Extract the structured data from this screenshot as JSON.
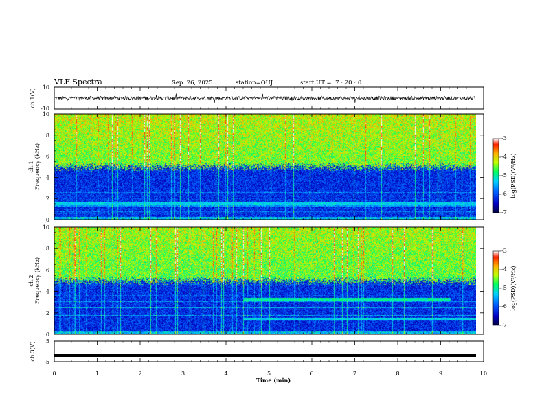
{
  "header": {
    "title": "VLF Spectra",
    "date": "Sep. 26, 2025",
    "station": "station=OUJ",
    "start": "start UT =  7 : 20 : 0"
  },
  "chart_data": [
    {
      "type": "line",
      "panel": "ch1-waveform",
      "xlabel": "",
      "ylabel": "ch.1(V)",
      "xlim": [
        0,
        9.8
      ],
      "ylim": [
        -10,
        10
      ],
      "y_ticks": [
        {
          "value": 10,
          "label": "10"
        },
        {
          "value": -10,
          "label": "-10"
        }
      ],
      "trace_color": "#000000",
      "description_level": "noisy signal around 0 V, amplitude roughly ±3 V with spikes"
    },
    {
      "type": "heatmap",
      "panel": "ch1-spectrogram",
      "ylabel": "ch.1\nFrequency (kHz)",
      "ylabel_lines": [
        "ch.1",
        "Frequency (kHz)"
      ],
      "xlim": [
        0,
        9.8
      ],
      "ylim": [
        0,
        10
      ],
      "y_ticks": [
        0,
        2,
        4,
        6,
        8,
        10
      ],
      "colorbar": {
        "label": "log(PSD)(V²/Hz)",
        "range": [
          -7,
          -3
        ],
        "ticks": [
          -3,
          -4,
          -5,
          -6,
          -7
        ]
      },
      "features": [
        {
          "description": "broadband noise above ~5 kHz",
          "freq_range": [
            5,
            10
          ],
          "log_psd": -4.5
        },
        {
          "description": "quiet band",
          "freq_range": [
            0.3,
            5
          ],
          "log_psd": -6.2
        },
        {
          "description": "narrow band line",
          "freq_range": [
            1.4,
            1.7
          ],
          "log_psd": -5.3
        }
      ]
    },
    {
      "type": "heatmap",
      "panel": "ch2-spectrogram",
      "ylabel": "ch.2\nFrequency (kHz)",
      "ylabel_lines": [
        "ch.2",
        "Frequency (kHz)"
      ],
      "xlim": [
        0,
        9.8
      ],
      "ylim": [
        0,
        10
      ],
      "y_ticks": [
        0,
        2,
        4,
        6,
        8,
        10
      ],
      "colorbar": {
        "label": "log(PSD)(V²/Hz)",
        "range": [
          -7,
          -3
        ],
        "ticks": [
          -3,
          -4,
          -5,
          -6,
          -7
        ]
      },
      "features": [
        {
          "description": "broadband noise above ~5 kHz",
          "freq_range": [
            5,
            10
          ],
          "log_psd": -4.6
        },
        {
          "description": "quiet band",
          "freq_range": [
            0.3,
            5
          ],
          "log_psd": -6.2
        },
        {
          "description": "emission band",
          "time_range": [
            4.4,
            9.2
          ],
          "freq_range": [
            3.1,
            3.4
          ],
          "log_psd": -5.0
        },
        {
          "description": "emission band",
          "time_range": [
            4.4,
            9.8
          ],
          "freq_range": [
            1.3,
            1.6
          ],
          "log_psd": -5.3
        }
      ]
    },
    {
      "type": "line",
      "panel": "ch3-waveform",
      "xlabel": "Time (min)",
      "ylabel": "ch.3(V)",
      "xlim": [
        0,
        10
      ],
      "ylim": [
        -5,
        5
      ],
      "x_ticks": [
        0,
        1,
        2,
        3,
        4,
        5,
        6,
        7,
        8,
        9,
        10
      ],
      "y_ticks": [
        {
          "value": 5,
          "label": "5"
        },
        {
          "value": -5,
          "label": "-5"
        }
      ],
      "trace_color": "#000000",
      "level": -2
    }
  ]
}
